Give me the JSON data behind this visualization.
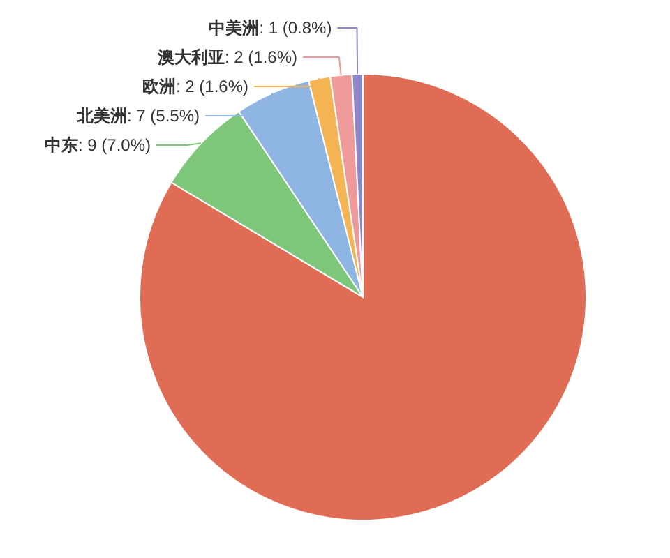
{
  "chart_data": {
    "type": "pie",
    "categories": [
      null,
      "中东",
      "北美洲",
      "欧洲",
      "澳大利亚",
      "中美洲"
    ],
    "values": [
      107,
      9,
      7,
      2,
      2,
      1
    ],
    "value_labels": [
      null,
      ": 9 (7.0%)",
      ": 7 (5.5%)",
      ": 2 (1.6%)",
      ": 2 (1.6%)",
      ": 1 (0.8%)"
    ],
    "colors": [
      "#e06c55",
      "#7dc67a",
      "#8fb5e3",
      "#f5b453",
      "#ef9a9a",
      "#8b87c8"
    ],
    "legend": false
  }
}
